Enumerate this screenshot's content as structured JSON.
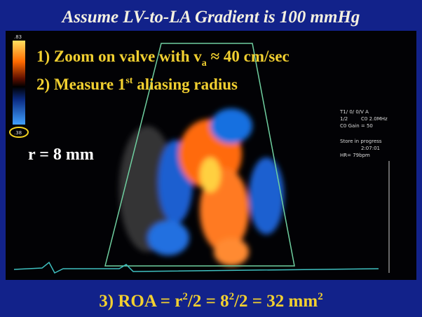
{
  "header": {
    "title": "Assume LV-to-LA Gradient is 100 mmHg"
  },
  "steps": [
    {
      "text": "1) Zoom on valve with v",
      "sub": "a",
      "rest": " ≈ 40 cm/sec"
    },
    {
      "text": "2) Measure 1",
      "sup": "st",
      "rest": " aliasing radius"
    }
  ],
  "radius": "r = 8 mm",
  "color_scale": {
    "top": ".83",
    "bottom": ".38"
  },
  "machine_info": [
    "T1/ 0/ 0/V A",
    "1/2",
    "C0 2.0MHz",
    "C0 Gain = 50",
    "Store in progress",
    "2:07:01",
    "HR= 79bpm"
  ],
  "footer": {
    "parts": [
      "3) ROA = r",
      "2",
      "/2 = 8",
      "2",
      "/2 = 32 mm",
      "2"
    ]
  }
}
